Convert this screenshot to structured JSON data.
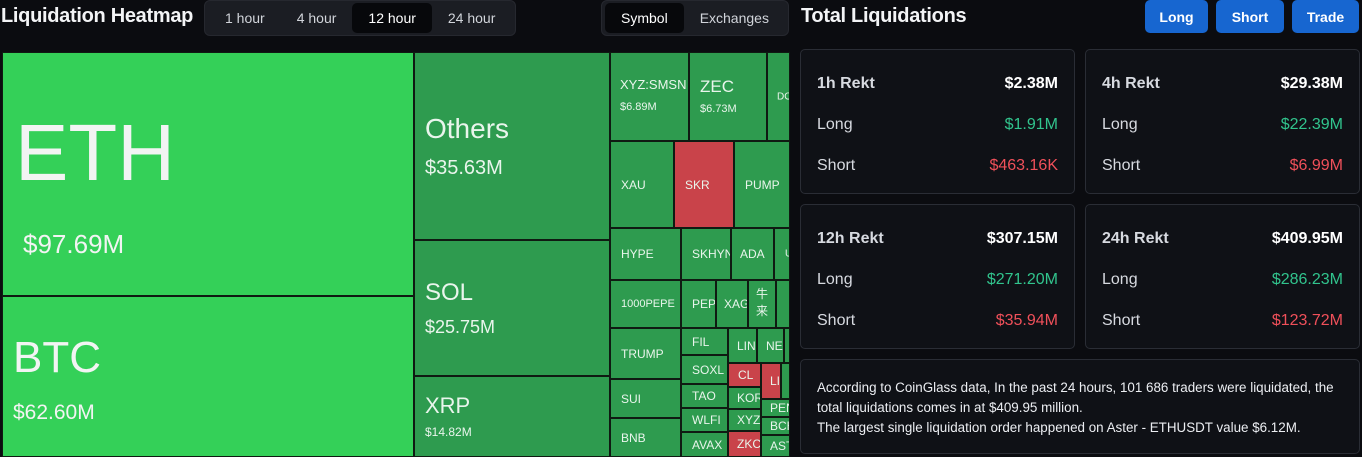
{
  "heatmap": {
    "title": "Liquidation Heatmap",
    "time_tabs": [
      "1 hour",
      "4 hour",
      "12 hour",
      "24 hour"
    ],
    "active_time_tab": "12 hour",
    "view_tabs": [
      "Symbol",
      "Exchanges"
    ],
    "active_view_tab": "Symbol",
    "cells": {
      "eth": {
        "symbol": "ETH",
        "value": "$97.69M"
      },
      "btc": {
        "symbol": "BTC",
        "value": "$62.60M"
      },
      "others": {
        "symbol": "Others",
        "value": "$35.63M"
      },
      "sol": {
        "symbol": "SOL",
        "value": "$25.75M"
      },
      "xrp": {
        "symbol": "XRP",
        "value": "$14.82M"
      },
      "smsn": {
        "symbol": "XYZ:SMSN",
        "value": "$6.89M"
      },
      "zec": {
        "symbol": "ZEC",
        "value": "$6.73M"
      },
      "do": {
        "symbol": "DO"
      },
      "xau": {
        "symbol": "XAU"
      },
      "skr": {
        "symbol": "SKR"
      },
      "pump": {
        "symbol": "PUMP"
      },
      "hype": {
        "symbol": "HYPE"
      },
      "skhyn": {
        "symbol": "SKHYN"
      },
      "ada": {
        "symbol": "ADA"
      },
      "u": {
        "symbol": "U"
      },
      "pepe": {
        "symbol": "1000PEPE"
      },
      "pep": {
        "symbol": "PEP"
      },
      "xag": {
        "symbol": "XAG"
      },
      "niulai": {
        "symbol": "牛\n来"
      },
      "trump": {
        "symbol": "TRUMP"
      },
      "fil": {
        "symbol": "FIL"
      },
      "lin": {
        "symbol": "LIN"
      },
      "nea": {
        "symbol": "NEA"
      },
      "soxl": {
        "symbol": "SOXL"
      },
      "cl": {
        "symbol": "CL"
      },
      "li": {
        "symbol": "LI"
      },
      "sui": {
        "symbol": "SUI"
      },
      "tao": {
        "symbol": "TAO"
      },
      "kor": {
        "symbol": "KOR"
      },
      "pen": {
        "symbol": "PEN"
      },
      "wlfi": {
        "symbol": "WLFI"
      },
      "xyz": {
        "symbol": "XYZ"
      },
      "bch": {
        "symbol": "BCH"
      },
      "bnb": {
        "symbol": "BNB"
      },
      "avax": {
        "symbol": "AVAX"
      },
      "zkc": {
        "symbol": "ZKC"
      },
      "ast": {
        "symbol": "AST"
      }
    }
  },
  "totals": {
    "title": "Total Liquidations",
    "buttons": {
      "long": "Long",
      "short": "Short",
      "trade": "Trade"
    },
    "cards": {
      "h1": {
        "title": "1h Rekt",
        "total": "$2.38M",
        "long_label": "Long",
        "long": "$1.91M",
        "short_label": "Short",
        "short": "$463.16K"
      },
      "h4": {
        "title": "4h Rekt",
        "total": "$29.38M",
        "long_label": "Long",
        "long": "$22.39M",
        "short_label": "Short",
        "short": "$6.99M"
      },
      "h12": {
        "title": "12h Rekt",
        "total": "$307.15M",
        "long_label": "Long",
        "long": "$271.20M",
        "short_label": "Short",
        "short": "$35.94M"
      },
      "h24": {
        "title": "24h Rekt",
        "total": "$409.95M",
        "long_label": "Long",
        "long": "$286.23M",
        "short_label": "Short",
        "short": "$123.72M"
      }
    },
    "summary": {
      "line1": "According to CoinGlass data, In the past 24 hours, 101 686 traders were liquidated, the total liquidations comes in at $409.95 million.",
      "line2": "The largest single liquidation order happened on Aster - ETHUSDT value $6.12M."
    }
  },
  "colors": {
    "long_bright": "#34d058",
    "long": "#2e9b4f",
    "short": "#c9434a",
    "accent": "#1766d0"
  }
}
